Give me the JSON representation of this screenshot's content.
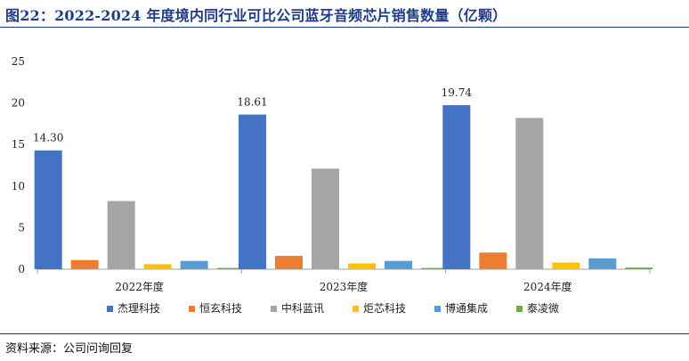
{
  "header": {
    "title": "图22：2022-2024 年度境内同行业可比公司蓝牙音频芯片销售数量（亿颗）"
  },
  "footer": {
    "source": "资料来源：公司问询回复"
  },
  "chart_data": {
    "type": "bar",
    "title": "图22：2022-2024 年度境内同行业可比公司蓝牙音频芯片销售数量（亿颗）",
    "xlabel": "",
    "ylabel": "",
    "categories": [
      "2022年度",
      "2023年度",
      "2024年度"
    ],
    "ylim": [
      0,
      25
    ],
    "yticks": [
      0,
      5,
      10,
      15,
      20,
      25
    ],
    "grid": false,
    "legend_position": "bottom",
    "series": [
      {
        "name": "杰理科技",
        "color": "#4472c4",
        "values": [
          14.3,
          18.61,
          19.74
        ],
        "labels": [
          "14.30",
          "18.61",
          "19.74"
        ]
      },
      {
        "name": "恒玄科技",
        "color": "#ed7d31",
        "values": [
          1.1,
          1.6,
          2.0
        ]
      },
      {
        "name": "中科蓝讯",
        "color": "#a5a5a5",
        "values": [
          8.2,
          12.1,
          18.2
        ]
      },
      {
        "name": "炬芯科技",
        "color": "#ffc000",
        "values": [
          0.6,
          0.7,
          0.8
        ]
      },
      {
        "name": "博通集成",
        "color": "#5b9bd5",
        "values": [
          1.0,
          1.0,
          1.3
        ]
      },
      {
        "name": "泰凌微",
        "color": "#70ad47",
        "values": [
          0.15,
          0.15,
          0.2
        ]
      }
    ]
  }
}
